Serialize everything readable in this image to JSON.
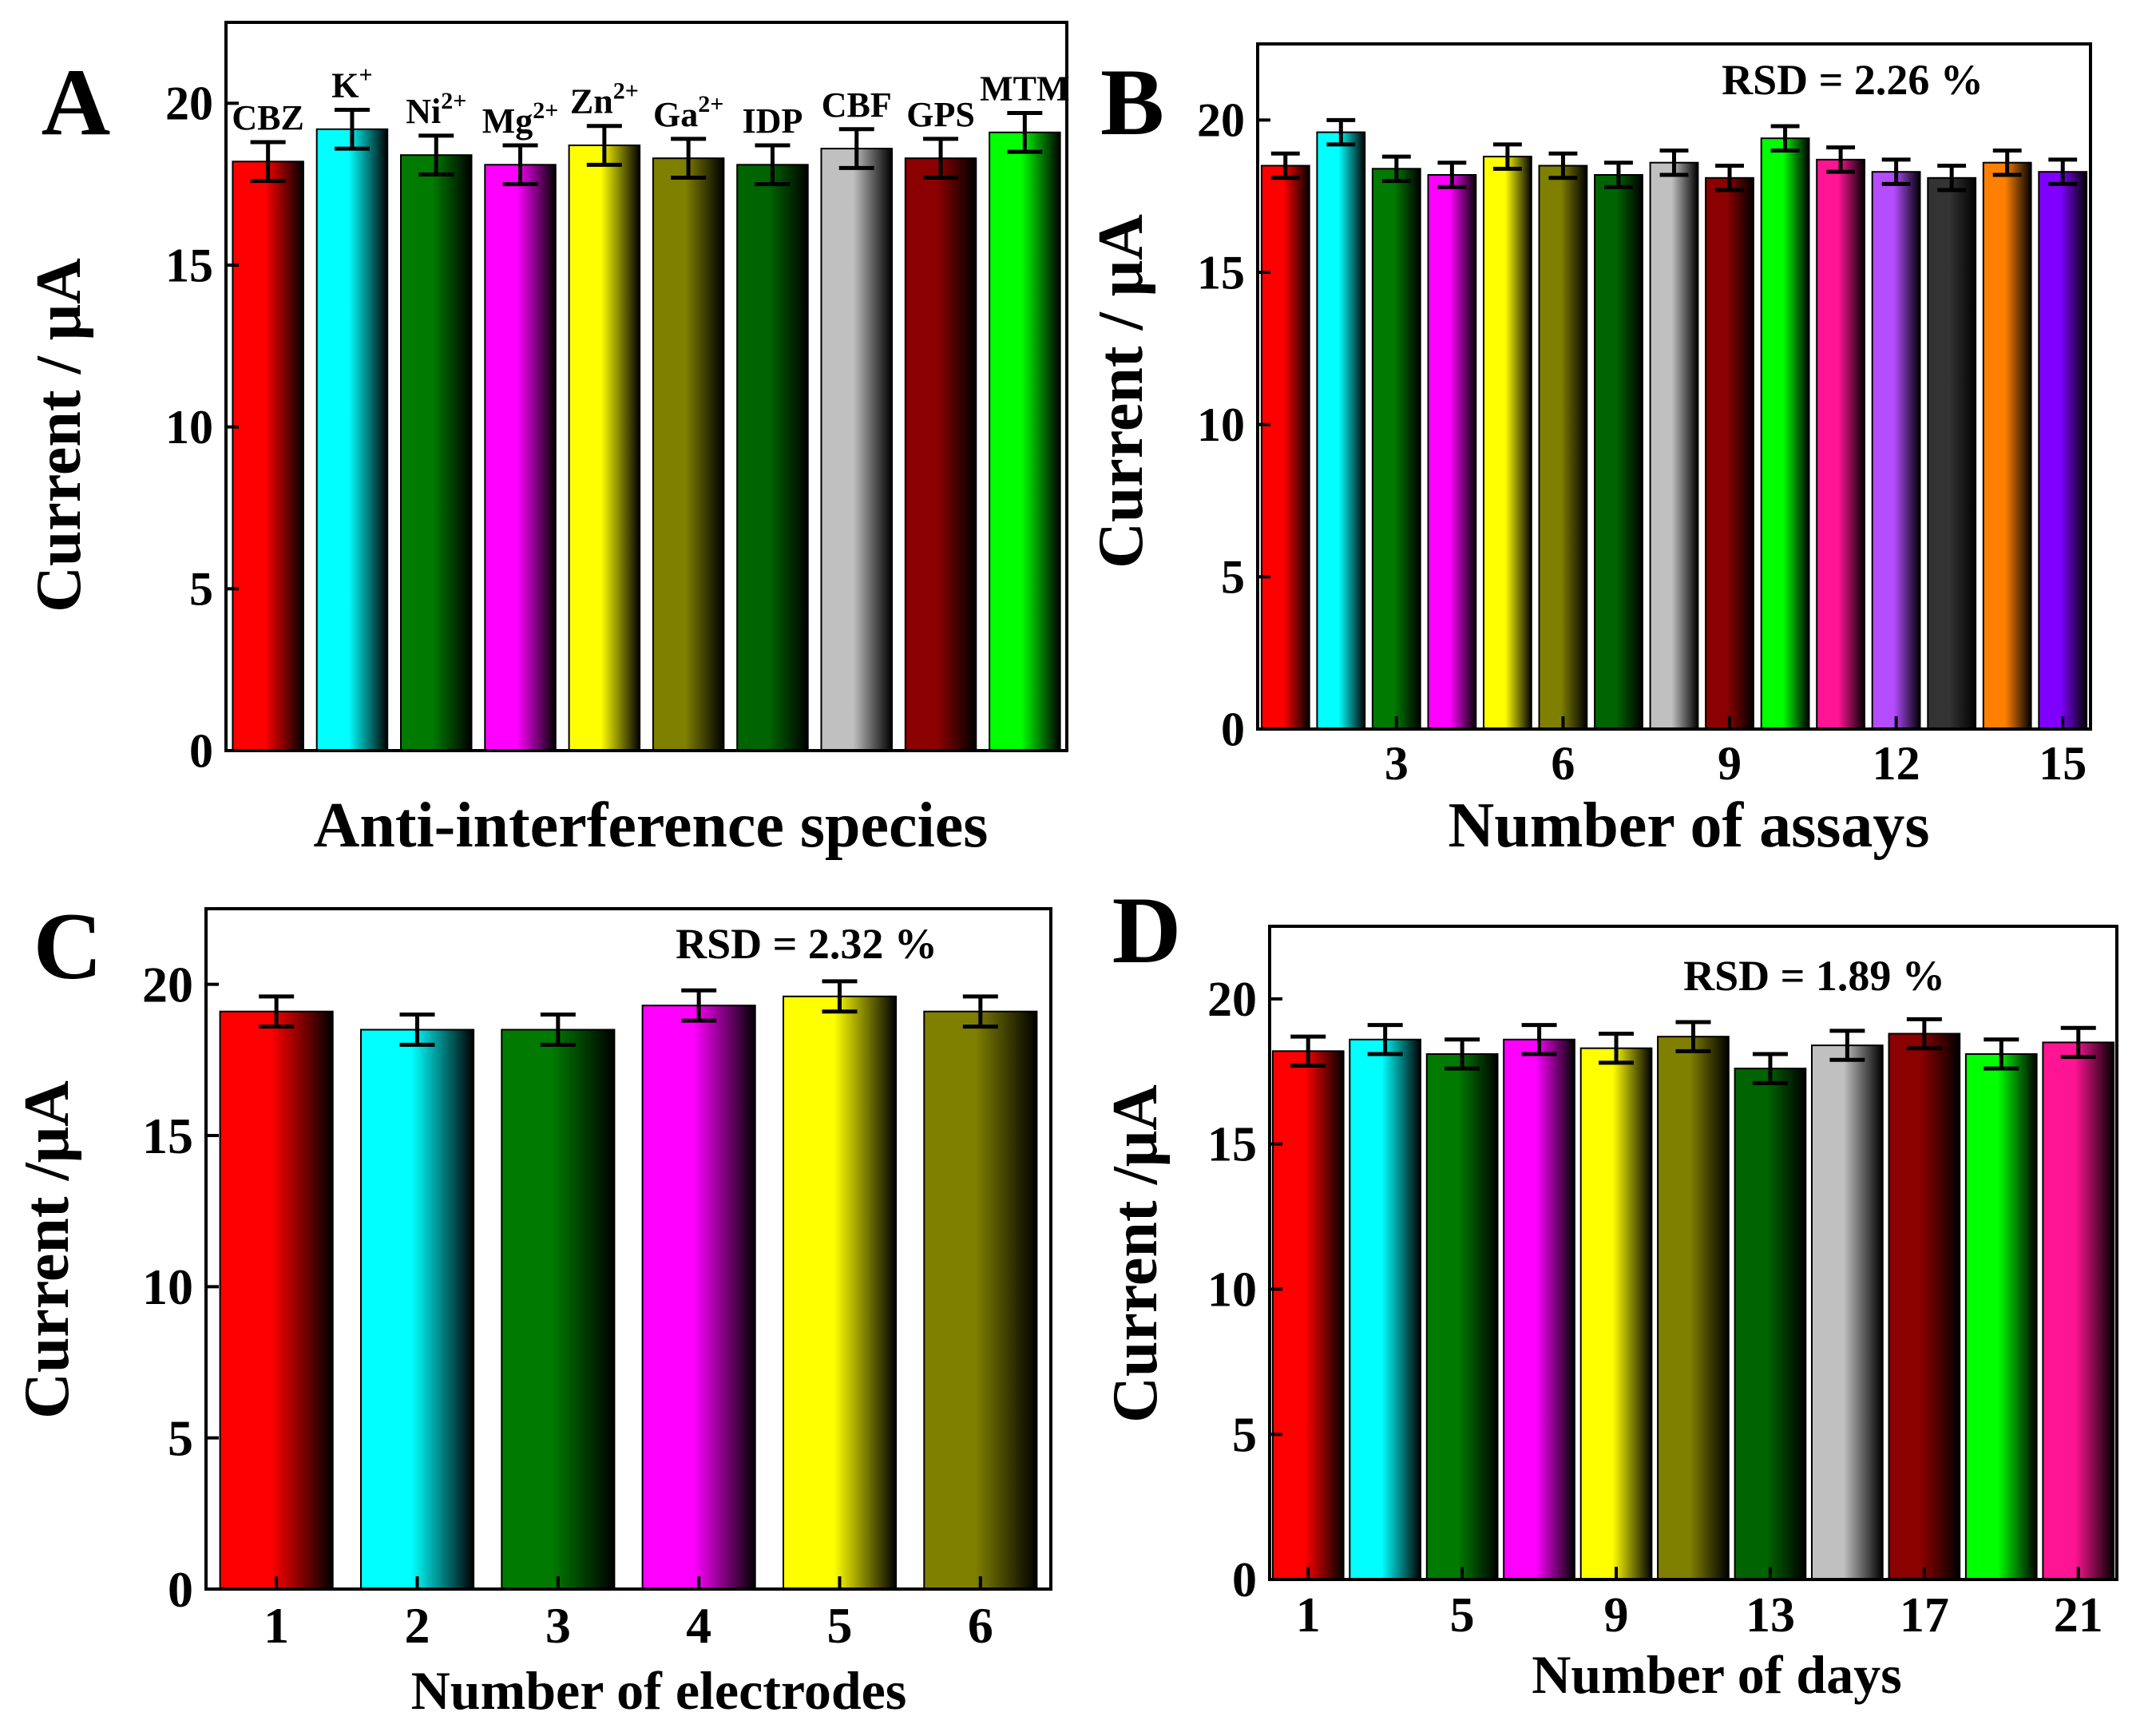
{
  "figure": {
    "panel_letters": [
      "A",
      "B",
      "C",
      "D"
    ]
  },
  "chart_data": [
    {
      "panel": "A",
      "type": "bar",
      "title": "",
      "xlabel": "Anti-interference species",
      "ylabel": "Current / μA",
      "ylim": [
        0,
        22.5
      ],
      "yticks": [
        0,
        5,
        10,
        15,
        20
      ],
      "categories": [
        {
          "label": "CBZ"
        },
        {
          "label": "K",
          "sup": "+"
        },
        {
          "label": "Ni",
          "sup": "2+"
        },
        {
          "label": "Mg",
          "sup": "2+"
        },
        {
          "label": "Zn",
          "sup": "2+"
        },
        {
          "label": "Ga",
          "sup": "2+"
        },
        {
          "label": "IDP"
        },
        {
          "label": "CBF"
        },
        {
          "label": "GPS"
        },
        {
          "label": "MTM"
        }
      ],
      "values": [
        18.2,
        19.2,
        18.4,
        18.1,
        18.7,
        18.3,
        18.1,
        18.6,
        18.3,
        19.1
      ],
      "errors": [
        0.6,
        0.6,
        0.6,
        0.6,
        0.6,
        0.6,
        0.6,
        0.6,
        0.6,
        0.6
      ],
      "colors": [
        "#ff0000",
        "#00ffff",
        "#007a00",
        "#ff00ff",
        "#ffff00",
        "#808000",
        "#006400",
        "#c0c0c0",
        "#8b0000",
        "#00ff00"
      ],
      "xticks": [],
      "rsd": ""
    },
    {
      "panel": "B",
      "type": "bar",
      "title": "",
      "xlabel": "Number of assays",
      "ylabel": "Current / μA",
      "ylim": [
        0,
        22.5
      ],
      "yticks": [
        0,
        5,
        10,
        15,
        20
      ],
      "x": [
        1,
        2,
        3,
        4,
        5,
        6,
        7,
        8,
        9,
        10,
        11,
        12,
        13,
        14,
        15
      ],
      "values": [
        18.5,
        19.6,
        18.4,
        18.2,
        18.8,
        18.5,
        18.2,
        18.6,
        18.1,
        19.4,
        18.7,
        18.3,
        18.1,
        18.6,
        18.3
      ],
      "errors": [
        0.4,
        0.4,
        0.4,
        0.4,
        0.4,
        0.4,
        0.4,
        0.4,
        0.4,
        0.4,
        0.4,
        0.4,
        0.4,
        0.4,
        0.4
      ],
      "colors": [
        "#ff0000",
        "#00ffff",
        "#007a00",
        "#ff00ff",
        "#ffff00",
        "#808000",
        "#006400",
        "#c0c0c0",
        "#8b0000",
        "#00ff00",
        "#ff1493",
        "#b44cff",
        "#333333",
        "#ff8000",
        "#8000ff"
      ],
      "xticks": [
        3,
        6,
        9,
        12,
        15
      ],
      "rsd": "RSD = 2.26 %"
    },
    {
      "panel": "C",
      "type": "bar",
      "title": "",
      "xlabel": "Number of electrodes",
      "ylabel": "Current /μA",
      "ylim": [
        0,
        22.5
      ],
      "yticks": [
        0,
        5,
        10,
        15,
        20
      ],
      "x": [
        1,
        2,
        3,
        4,
        5,
        6
      ],
      "values": [
        19.1,
        18.5,
        18.5,
        19.3,
        19.6,
        19.1
      ],
      "errors": [
        0.5,
        0.5,
        0.5,
        0.5,
        0.5,
        0.5
      ],
      "colors": [
        "#ff0000",
        "#00ffff",
        "#007a00",
        "#ff00ff",
        "#ffff00",
        "#808000"
      ],
      "xticks": [
        1,
        2,
        3,
        4,
        5,
        6
      ],
      "rsd": "RSD = 2.32 %"
    },
    {
      "panel": "D",
      "type": "bar",
      "title": "",
      "xlabel": "Number of days",
      "ylabel": "Current /μA",
      "ylim": [
        0,
        22.5
      ],
      "yticks": [
        0,
        5,
        10,
        15,
        20
      ],
      "x": [
        1,
        3,
        5,
        7,
        9,
        11,
        13,
        15,
        17,
        19,
        21
      ],
      "values": [
        18.2,
        18.6,
        18.1,
        18.6,
        18.3,
        18.7,
        17.6,
        18.4,
        18.8,
        18.1,
        18.5
      ],
      "errors": [
        0.5,
        0.5,
        0.5,
        0.5,
        0.5,
        0.5,
        0.5,
        0.5,
        0.5,
        0.5,
        0.5
      ],
      "colors": [
        "#ff0000",
        "#00ffff",
        "#007a00",
        "#ff00ff",
        "#ffff00",
        "#808000",
        "#006400",
        "#c0c0c0",
        "#8b0000",
        "#00ff00",
        "#ff1493"
      ],
      "xticks": [
        1,
        5,
        9,
        13,
        17,
        21
      ],
      "rsd": "RSD = 1.89 %"
    }
  ]
}
